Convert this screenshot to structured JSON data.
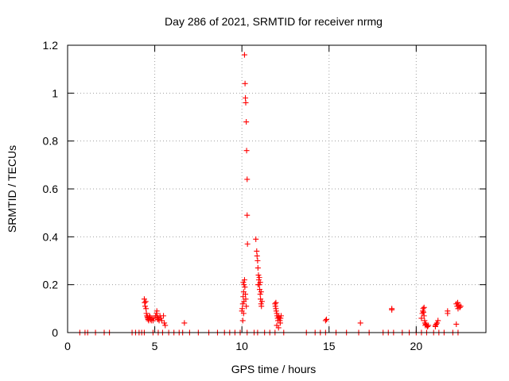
{
  "chart_data": {
    "type": "scatter",
    "title": "Day 286 of 2021, SRMTID for receiver nrmg",
    "xlabel": "GPS time / hours",
    "ylabel": "SRMTID / TECUs",
    "xlim": [
      0,
      24
    ],
    "ylim": [
      0,
      1.2
    ],
    "xticks": [
      0,
      5,
      10,
      15,
      20
    ],
    "yticks": [
      0,
      0.2,
      0.4,
      0.6,
      0.8,
      1,
      1.2
    ],
    "ytick_labels": [
      "0",
      "0.2",
      "0.4",
      "0.6",
      "0.8",
      "1",
      "1.2"
    ],
    "grid": true,
    "marker": "+",
    "color": "#ff0000",
    "series": [
      {
        "name": "SRMTID",
        "points": [
          [
            0.7,
            0
          ],
          [
            1.0,
            0
          ],
          [
            1.15,
            0
          ],
          [
            1.6,
            0
          ],
          [
            2.1,
            0
          ],
          [
            2.4,
            0
          ],
          [
            3.7,
            0
          ],
          [
            3.9,
            0
          ],
          [
            4.1,
            0
          ],
          [
            4.25,
            0
          ],
          [
            4.4,
            0
          ],
          [
            4.9,
            0
          ],
          [
            5.2,
            0
          ],
          [
            5.45,
            0
          ],
          [
            5.8,
            0
          ],
          [
            6.1,
            0
          ],
          [
            6.4,
            0
          ],
          [
            6.6,
            0
          ],
          [
            7.0,
            0
          ],
          [
            7.5,
            0
          ],
          [
            8.1,
            0
          ],
          [
            8.6,
            0
          ],
          [
            9.0,
            0
          ],
          [
            9.3,
            0
          ],
          [
            9.6,
            0
          ],
          [
            9.9,
            0
          ],
          [
            10.3,
            0
          ],
          [
            10.7,
            0
          ],
          [
            10.9,
            0
          ],
          [
            11.3,
            0
          ],
          [
            11.6,
            0
          ],
          [
            11.9,
            0
          ],
          [
            12.4,
            0
          ],
          [
            13.7,
            0
          ],
          [
            14.2,
            0
          ],
          [
            14.5,
            0
          ],
          [
            14.8,
            0
          ],
          [
            15.4,
            0
          ],
          [
            16.0,
            0
          ],
          [
            16.7,
            0
          ],
          [
            17.3,
            0
          ],
          [
            18.1,
            0
          ],
          [
            18.4,
            0
          ],
          [
            18.7,
            0
          ],
          [
            19.2,
            0
          ],
          [
            19.6,
            0
          ],
          [
            20.0,
            0
          ],
          [
            20.3,
            0
          ],
          [
            20.6,
            0
          ],
          [
            21.0,
            0
          ],
          [
            21.3,
            0
          ],
          [
            21.6,
            0
          ],
          [
            22.1,
            0
          ],
          [
            22.4,
            0
          ],
          [
            4.4,
            0.14
          ],
          [
            4.42,
            0.125
          ],
          [
            4.45,
            0.11
          ],
          [
            4.48,
            0.13
          ],
          [
            4.5,
            0.1
          ],
          [
            4.52,
            0.08
          ],
          [
            4.55,
            0.07
          ],
          [
            4.58,
            0.065
          ],
          [
            4.6,
            0.06
          ],
          [
            4.62,
            0.055
          ],
          [
            4.65,
            0.05
          ],
          [
            4.68,
            0.06
          ],
          [
            4.7,
            0.07
          ],
          [
            4.73,
            0.065
          ],
          [
            4.76,
            0.055
          ],
          [
            4.8,
            0.05
          ],
          [
            4.85,
            0.06
          ],
          [
            4.9,
            0.05
          ],
          [
            4.95,
            0.06
          ],
          [
            5.05,
            0.07
          ],
          [
            5.1,
            0.08
          ],
          [
            5.12,
            0.09
          ],
          [
            5.15,
            0.065
          ],
          [
            5.18,
            0.055
          ],
          [
            5.2,
            0.06
          ],
          [
            5.25,
            0.05
          ],
          [
            5.3,
            0.07
          ],
          [
            5.35,
            0.06
          ],
          [
            5.4,
            0.05
          ],
          [
            5.5,
            0.07
          ],
          [
            5.55,
            0.04
          ],
          [
            5.6,
            0.03
          ],
          [
            6.7,
            0.04
          ],
          [
            10.0,
            0.09
          ],
          [
            10.02,
            0.1
          ],
          [
            10.05,
            0.12
          ],
          [
            10.07,
            0.15
          ],
          [
            10.1,
            0.17
          ],
          [
            10.12,
            0.2
          ],
          [
            10.15,
            0.22
          ],
          [
            10.17,
            0.19
          ],
          [
            10.2,
            0.16
          ],
          [
            10.05,
            0.05
          ],
          [
            10.1,
            0.08
          ],
          [
            10.22,
            0.14
          ],
          [
            10.25,
            0.11
          ],
          [
            10.08,
            0.21
          ],
          [
            10.12,
            0.13
          ],
          [
            10.15,
            1.16
          ],
          [
            10.18,
            1.04
          ],
          [
            10.2,
            0.98
          ],
          [
            10.22,
            0.96
          ],
          [
            10.25,
            0.88
          ],
          [
            10.27,
            0.76
          ],
          [
            10.3,
            0.64
          ],
          [
            10.3,
            0.49
          ],
          [
            10.32,
            0.37
          ],
          [
            10.8,
            0.39
          ],
          [
            10.85,
            0.34
          ],
          [
            10.87,
            0.32
          ],
          [
            10.9,
            0.3
          ],
          [
            10.92,
            0.27
          ],
          [
            10.95,
            0.24
          ],
          [
            10.97,
            0.22
          ],
          [
            11.0,
            0.2
          ],
          [
            11.02,
            0.18
          ],
          [
            11.05,
            0.16
          ],
          [
            11.07,
            0.14
          ],
          [
            11.1,
            0.12
          ],
          [
            11.12,
            0.11
          ],
          [
            11.0,
            0.23
          ],
          [
            11.05,
            0.21
          ],
          [
            10.93,
            0.2
          ],
          [
            11.1,
            0.17
          ],
          [
            11.15,
            0.13
          ],
          [
            11.9,
            0.12
          ],
          [
            11.92,
            0.11
          ],
          [
            11.95,
            0.1
          ],
          [
            11.97,
            0.09
          ],
          [
            12.0,
            0.08
          ],
          [
            12.02,
            0.07
          ],
          [
            12.05,
            0.06
          ],
          [
            12.07,
            0.05
          ],
          [
            12.1,
            0.07
          ],
          [
            12.12,
            0.065
          ],
          [
            12.15,
            0.06
          ],
          [
            12.18,
            0.05
          ],
          [
            12.2,
            0.04
          ],
          [
            12.22,
            0.06
          ],
          [
            12.25,
            0.07
          ],
          [
            12.0,
            0.03
          ],
          [
            12.1,
            0.02
          ],
          [
            11.95,
            0.125
          ],
          [
            14.8,
            0.05
          ],
          [
            14.85,
            0.055
          ],
          [
            16.8,
            0.04
          ],
          [
            18.6,
            0.1
          ],
          [
            18.6,
            0.095
          ],
          [
            20.3,
            0.06
          ],
          [
            20.35,
            0.08
          ],
          [
            20.38,
            0.09
          ],
          [
            20.4,
            0.1
          ],
          [
            20.42,
            0.085
          ],
          [
            20.45,
            0.07
          ],
          [
            20.48,
            0.05
          ],
          [
            20.5,
            0.04
          ],
          [
            20.52,
            0.03
          ],
          [
            20.55,
            0.035
          ],
          [
            20.6,
            0.03
          ],
          [
            20.65,
            0.025
          ],
          [
            20.7,
            0.03
          ],
          [
            20.45,
            0.105
          ],
          [
            21.1,
            0.03
          ],
          [
            21.15,
            0.035
          ],
          [
            21.2,
            0.04
          ],
          [
            21.25,
            0.05
          ],
          [
            21.1,
            0.025
          ],
          [
            21.8,
            0.08
          ],
          [
            21.8,
            0.09
          ],
          [
            22.3,
            0.12
          ],
          [
            22.35,
            0.11
          ],
          [
            22.4,
            0.1
          ],
          [
            22.45,
            0.115
          ],
          [
            22.5,
            0.105
          ],
          [
            22.55,
            0.11
          ],
          [
            22.38,
            0.125
          ],
          [
            22.3,
            0.035
          ]
        ]
      }
    ]
  }
}
